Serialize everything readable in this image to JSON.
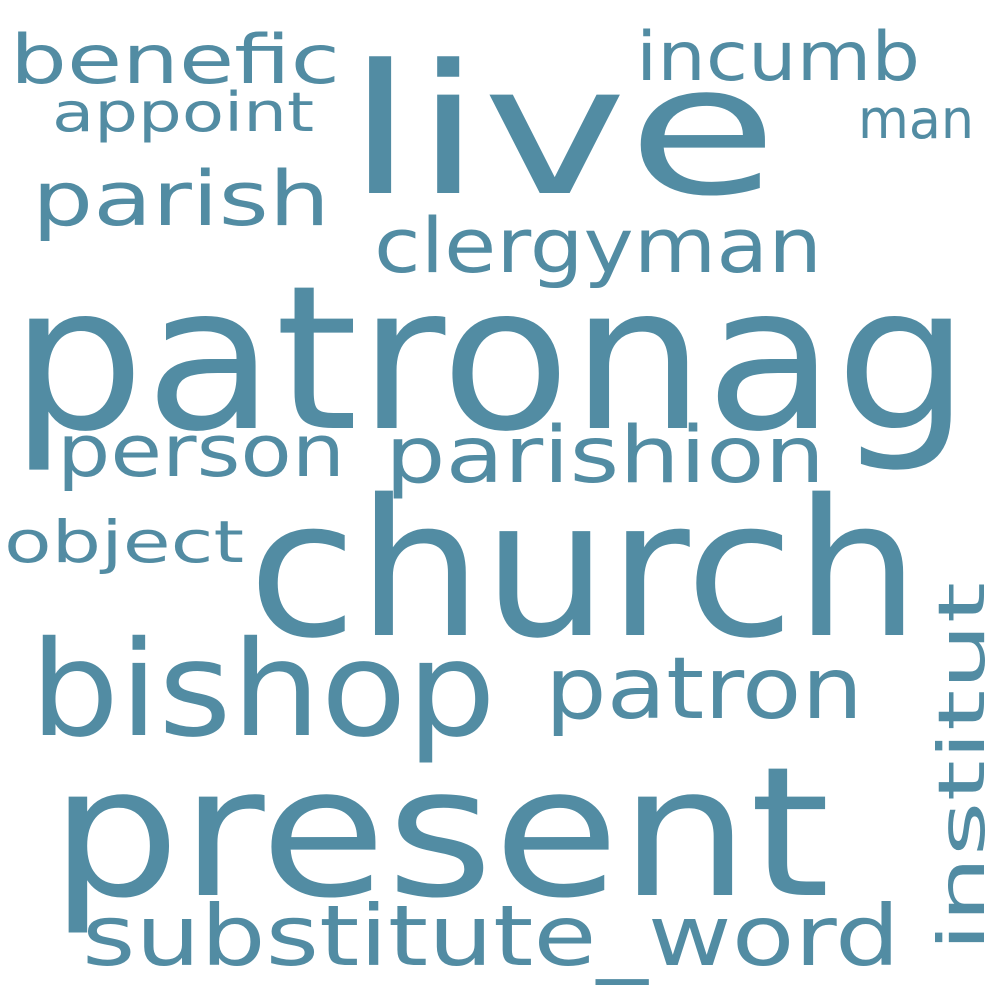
{
  "word_cloud": {
    "color": "#528ca3",
    "words": [
      {
        "text": "patronag",
        "rank": 1
      },
      {
        "text": "church",
        "rank": 2
      },
      {
        "text": "present",
        "rank": 3
      },
      {
        "text": "live",
        "rank": 4
      },
      {
        "text": "bishop",
        "rank": 5
      },
      {
        "text": "patron",
        "rank": 6
      },
      {
        "text": "parishion",
        "rank": 7
      },
      {
        "text": "clergyman",
        "rank": 8
      },
      {
        "text": "substitute_word",
        "rank": 9
      },
      {
        "text": "person",
        "rank": 10
      },
      {
        "text": "parish",
        "rank": 11
      },
      {
        "text": "incumb",
        "rank": 12
      },
      {
        "text": "benefic",
        "rank": 13
      },
      {
        "text": "institut",
        "rank": 14
      },
      {
        "text": "object",
        "rank": 15
      },
      {
        "text": "appoint",
        "rank": 16
      },
      {
        "text": "man",
        "rank": 17
      }
    ]
  }
}
